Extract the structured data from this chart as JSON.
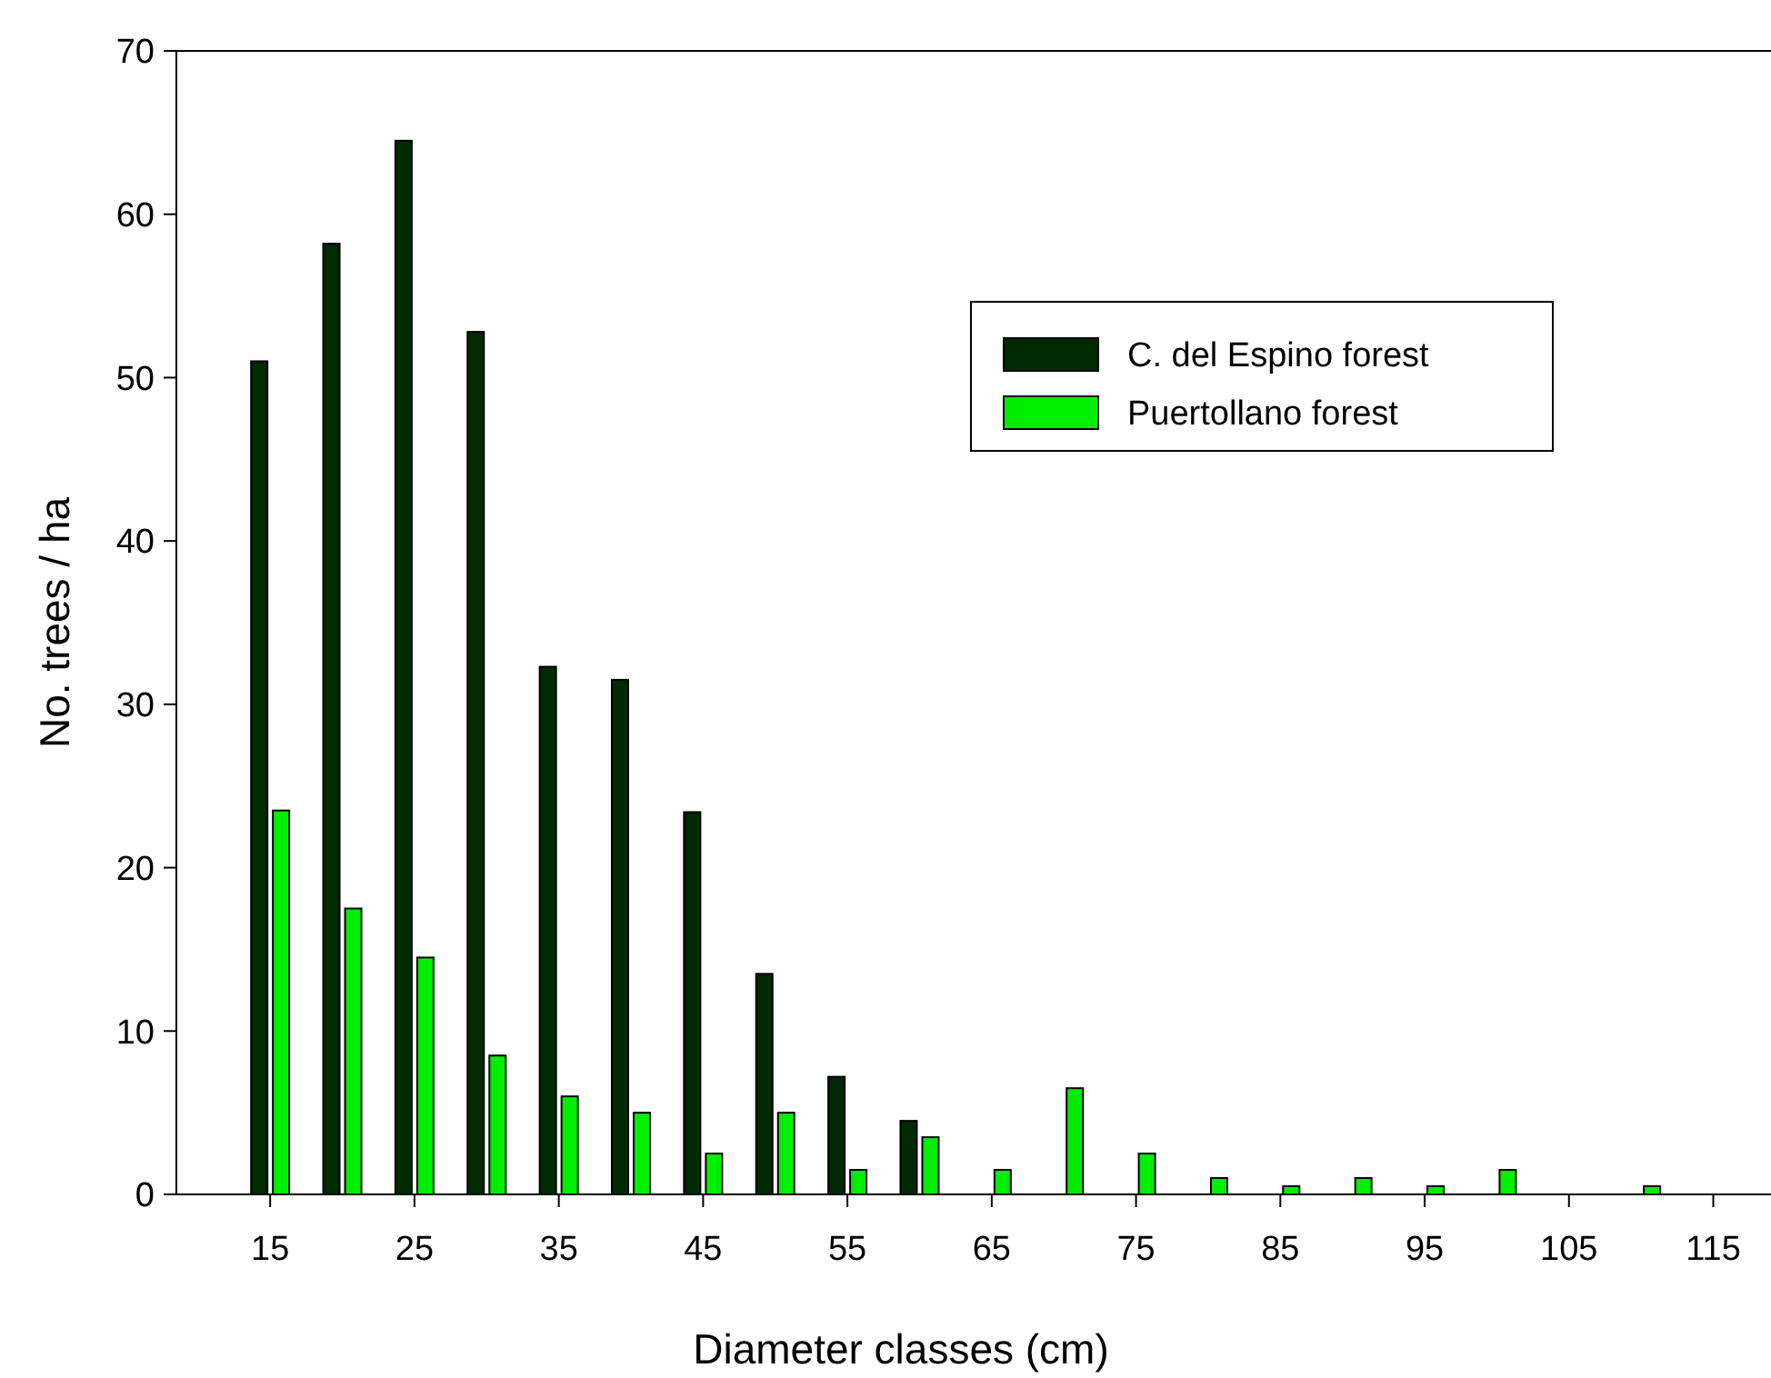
{
  "chart_data": {
    "type": "bar",
    "xlabel": "Diameter classes (cm)",
    "ylabel": "No. trees / ha",
    "x": [
      15,
      20,
      25,
      30,
      35,
      40,
      45,
      50,
      55,
      60,
      65,
      70,
      75,
      80,
      85,
      90,
      95,
      100,
      110
    ],
    "series": [
      {
        "name": "C. del Espino forest",
        "color": "#002a00",
        "values": [
          51,
          58.2,
          64.5,
          52.8,
          32.3,
          31.5,
          23.4,
          13.5,
          7.2,
          4.5,
          null,
          null,
          null,
          null,
          null,
          null,
          null,
          null,
          null
        ]
      },
      {
        "name": "Puertollano forest",
        "color": "#00ee00",
        "values": [
          23.5,
          17.5,
          14.5,
          8.5,
          6,
          5,
          2.5,
          5,
          1.5,
          3.5,
          1.5,
          6.5,
          2.5,
          1,
          0.5,
          1,
          0.5,
          1.5,
          0.5
        ]
      }
    ],
    "xlim": [
      8.5,
      119
    ],
    "xticks": [
      15,
      25,
      35,
      45,
      55,
      65,
      75,
      85,
      95,
      105,
      115
    ],
    "ylim": [
      0,
      70
    ],
    "yticks": [
      0,
      10,
      20,
      30,
      40,
      50,
      60,
      70
    ],
    "grid": false,
    "legend": "top right"
  }
}
